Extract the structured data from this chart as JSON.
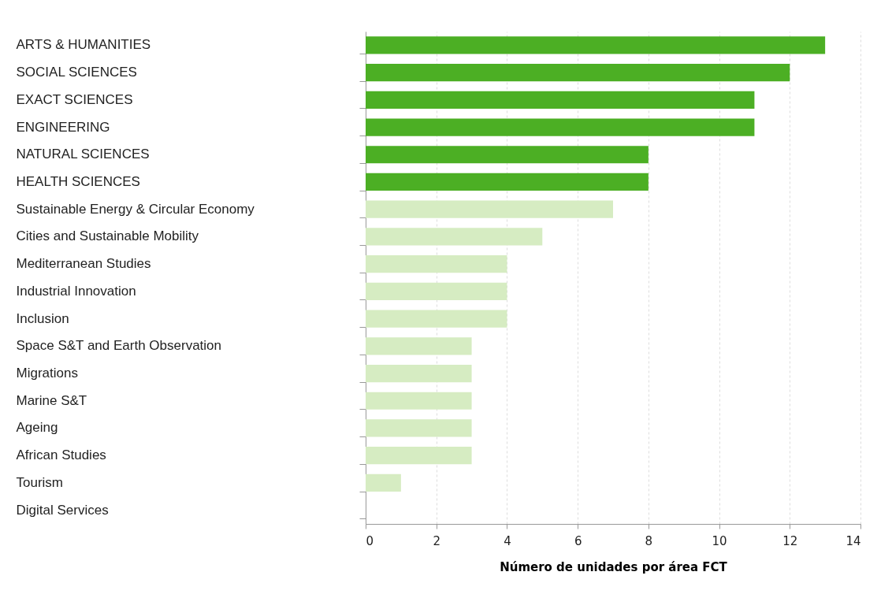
{
  "chart_data": {
    "type": "bar",
    "orientation": "horizontal",
    "xlabel": "Número de unidades por área FCT",
    "categories": [
      "ARTS & HUMANITIES",
      "SOCIAL SCIENCES",
      "EXACT SCIENCES",
      "ENGINEERING",
      "NATURAL SCIENCES",
      "HEALTH SCIENCES",
      "Sustainable Energy & Circular Economy",
      "Cities and Sustainable Mobility",
      "Mediterranean Studies",
      "Industrial Innovation",
      "Inclusion",
      "Space S&T and Earth Observation",
      "Migrations",
      "Marine S&T",
      "Ageing",
      "African Studies",
      "Tourism",
      "Digital Services"
    ],
    "values": [
      13,
      12,
      11,
      11,
      8,
      8,
      7,
      5,
      4,
      4,
      4,
      3,
      3,
      3,
      3,
      3,
      1,
      0
    ],
    "colors": [
      "#4caf24",
      "#4caf24",
      "#4caf24",
      "#4caf24",
      "#4caf24",
      "#4caf24",
      "#d6ecc2",
      "#d6ecc2",
      "#d6ecc2",
      "#d6ecc2",
      "#d6ecc2",
      "#d6ecc2",
      "#d6ecc2",
      "#d6ecc2",
      "#d6ecc2",
      "#d6ecc2",
      "#d6ecc2",
      "#d6ecc2"
    ],
    "xlim": [
      0,
      14
    ],
    "xticks": [
      0,
      2,
      4,
      6,
      8,
      10,
      12,
      14
    ],
    "grid": "x"
  }
}
